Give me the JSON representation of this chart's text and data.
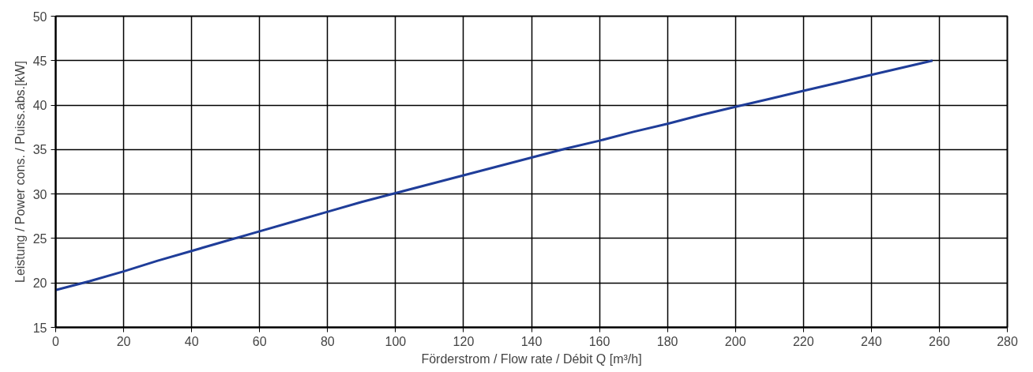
{
  "chart_data": {
    "type": "line",
    "xlabel": "Förderstrom / Flow rate / Débit Q [m³/h]",
    "ylabel": "Leistung / Power cons. / Puiss.abs.[kW]",
    "x": [
      0,
      10,
      20,
      30,
      40,
      50,
      60,
      70,
      80,
      90,
      100,
      110,
      120,
      130,
      140,
      150,
      160,
      170,
      180,
      190,
      200,
      210,
      220,
      230,
      240,
      250,
      258
    ],
    "series": [
      {
        "color": "#1f3d99",
        "values": [
          19.2,
          20.2,
          21.3,
          22.5,
          23.6,
          24.7,
          25.8,
          26.9,
          28.0,
          29.1,
          30.1,
          31.1,
          32.1,
          33.1,
          34.1,
          35.1,
          36.0,
          37.0,
          37.9,
          38.9,
          39.8,
          40.7,
          41.6,
          42.5,
          43.4,
          44.3,
          45.0
        ]
      }
    ],
    "xlim": [
      0,
      280
    ],
    "ylim": [
      15,
      50
    ],
    "xticks": [
      0,
      20,
      40,
      60,
      80,
      100,
      120,
      140,
      160,
      180,
      200,
      220,
      240,
      260,
      280
    ],
    "yticks": [
      15,
      20,
      25,
      30,
      35,
      40,
      45,
      50
    ],
    "grid": true,
    "marker": "none",
    "line_style": "solid"
  }
}
